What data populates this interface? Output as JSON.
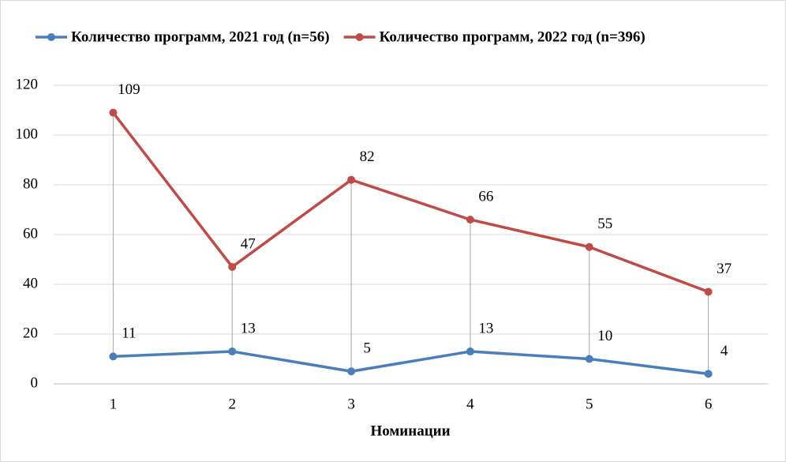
{
  "chart_data": {
    "type": "line",
    "x_label": "Номинации",
    "categories": [
      "1",
      "2",
      "3",
      "4",
      "5",
      "6"
    ],
    "series": [
      {
        "name": "Количество программ, 2021 год (n=56)",
        "color": "#4a7ebb",
        "values": [
          11,
          13,
          5,
          13,
          10,
          4
        ]
      },
      {
        "name": "Количество программ, 2022 год (n=396)",
        "color": "#be4b48",
        "values": [
          109,
          47,
          82,
          66,
          55,
          37
        ]
      }
    ],
    "ylim": [
      0,
      120
    ],
    "yticks": [
      0,
      20,
      40,
      60,
      80,
      100,
      120
    ],
    "grid": true,
    "high_low_lines": true,
    "legend": "top"
  }
}
